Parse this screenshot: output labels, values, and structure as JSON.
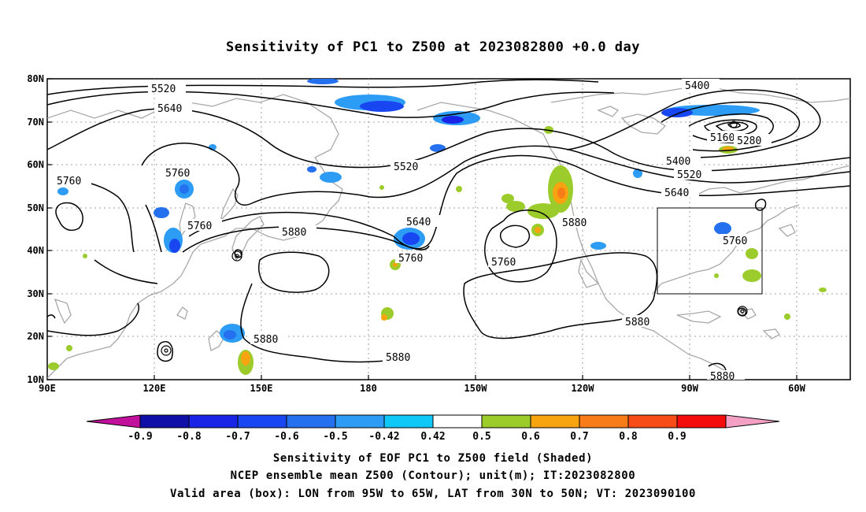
{
  "title": "Sensitivity of PC1 to Z500 at 2023082800 +0.0 day",
  "lat_labels": [
    "80N",
    "70N",
    "60N",
    "50N",
    "40N",
    "30N",
    "20N",
    "10N"
  ],
  "lon_labels": [
    "90E",
    "120E",
    "150E",
    "180",
    "150W",
    "120W",
    "90W",
    "60W"
  ],
  "contour_labels": [
    "5520",
    "5640",
    "5760",
    "5520",
    "5760",
    "5760",
    "5880",
    "5880",
    "5880",
    "5640",
    "5760",
    "5760",
    "5400",
    "5160",
    "5280",
    "5400",
    "5520",
    "5640",
    "5760",
    "5880",
    "5880",
    "5880"
  ],
  "colorbar": {
    "labels": [
      "-0.9",
      "-0.8",
      "-0.7",
      "-0.6",
      "-0.5",
      "-0.42",
      "0.42",
      "0.5",
      "0.6",
      "0.7",
      "0.8",
      "0.9"
    ],
    "left_arrow_color": "#c0109c",
    "right_arrow_color": "#f4a0c4",
    "colors": [
      "#1010a8",
      "#1a24e6",
      "#1846f0",
      "#2470ee",
      "#2c9cf4",
      "#10c8f8",
      "#ffffff",
      "#9ccc2c",
      "#f8a410",
      "#f87c18",
      "#f84c18",
      "#f40c0c"
    ]
  },
  "valid_box": {
    "lon_from": "95W",
    "lon_to": "65W",
    "lat_from": "30N",
    "lat_to": "50N"
  },
  "captions": [
    "Sensitivity of EOF PC1 to Z500 field (Shaded)",
    "NCEP ensemble mean Z500 (Contour); unit(m); IT:2023082800",
    "Valid area (box): LON from 95W to 65W, LAT from 30N to 50N; VT: 2023090100"
  ]
}
